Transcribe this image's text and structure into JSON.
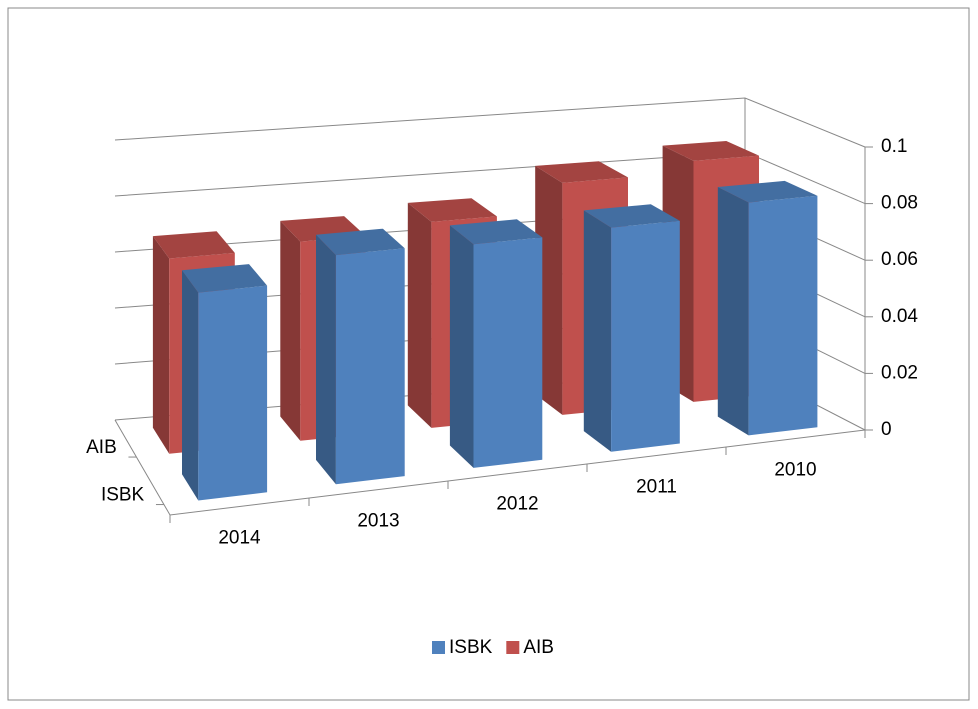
{
  "chart_data": {
    "type": "bar3d",
    "categories": [
      "2014",
      "2013",
      "2012",
      "2011",
      "2010"
    ],
    "series": [
      {
        "name": "ISBK",
        "color": "#4f81bd",
        "values": [
          0.07,
          0.078,
          0.077,
          0.078,
          0.082
        ]
      },
      {
        "name": "AIB",
        "color": "#c0504d",
        "values": [
          0.068,
          0.07,
          0.073,
          0.083,
          0.087
        ]
      }
    ],
    "ylim": [
      0,
      0.1
    ],
    "yticks": [
      0,
      0.02,
      0.04,
      0.06,
      0.08,
      0.1
    ],
    "grid": true,
    "legend": "bottom"
  }
}
